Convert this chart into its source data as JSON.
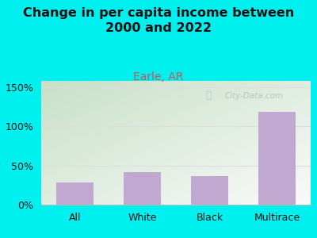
{
  "categories": [
    "All",
    "White",
    "Black",
    "Multirace"
  ],
  "values": [
    28,
    42,
    36,
    118
  ],
  "bar_color": "#c0a8d0",
  "title": "Change in per capita income between\n2000 and 2022",
  "subtitle": "Earle, AR",
  "title_color": "#111111",
  "subtitle_color": "#cc5555",
  "bg_color": "#00f0f0",
  "plot_bg_top_left": "#c8ddc0",
  "plot_bg_bottom_right": "#f8f8f0",
  "ylabel_ticks": [
    0,
    50,
    100,
    150
  ],
  "ylim": [
    0,
    158
  ],
  "grid_color": "#dddddd",
  "watermark_text": "City-Data.com",
  "title_fontsize": 11.5,
  "subtitle_fontsize": 10,
  "tick_fontsize": 9,
  "xlabel_fontsize": 9
}
